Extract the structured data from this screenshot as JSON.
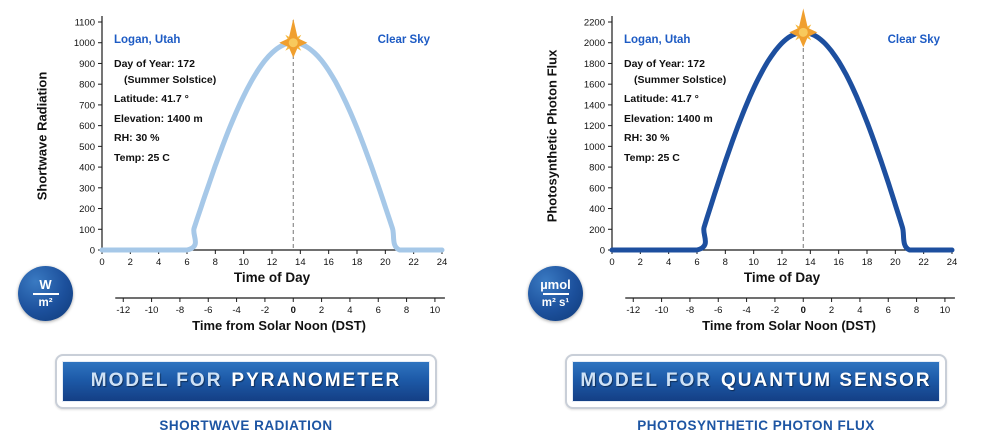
{
  "panels": [
    {
      "y_label": "Shortwave Radiation",
      "location": "Logan, Utah",
      "sky_condition": "Clear Sky",
      "annotations": [
        "Day of Year: 172",
        "(Summer Solstice)",
        "Latitude: 41.7 °",
        "Elevation: 1400 m",
        "RH: 30 %",
        "Temp: 25 C"
      ],
      "badge": {
        "top": "W",
        "bottom": "m²"
      },
      "banner": {
        "prefix": "MODEL FOR",
        "name": "PYRANOMETER"
      },
      "caption": "SHORTWAVE RADIATION"
    },
    {
      "y_label": "Photosynthetic Photon Flux",
      "location": "Logan, Utah",
      "sky_condition": "Clear Sky",
      "annotations": [
        "Day of Year: 172",
        "(Summer Solstice)",
        "Latitude: 41.7 °",
        "Elevation: 1400 m",
        "RH: 30 %",
        "Temp: 25 C"
      ],
      "badge": {
        "top": "µmol",
        "bottom": "m² s¹"
      },
      "banner": {
        "prefix": "MODEL FOR",
        "name": "QUANTUM SENSOR"
      },
      "caption": "PHOTOSYNTHETIC PHOTON FLUX"
    }
  ],
  "chart_data": [
    {
      "type": "line",
      "title": "Modeled clear-sky shortwave radiation, Logan Utah, Day of Year 172 (Summer Solstice), Lat 41.7°, Elev 1400 m, RH 30 %, Temp 25 C",
      "xlabel": "Time of Day",
      "ylabel": "Shortwave Radiation",
      "x_range": [
        0,
        24
      ],
      "x_ticks": [
        0,
        2,
        4,
        6,
        8,
        10,
        12,
        14,
        16,
        18,
        20,
        22,
        24
      ],
      "ylim": [
        0,
        1100
      ],
      "y_ticks": [
        0,
        100,
        200,
        300,
        400,
        500,
        600,
        700,
        800,
        900,
        1000,
        1100
      ],
      "secondary_x": {
        "label": "Time from Solar Noon (DST)",
        "ticks": [
          -12,
          -10,
          -8,
          -6,
          -4,
          -2,
          0,
          2,
          4,
          6,
          8,
          10
        ]
      },
      "solar_noon_x": 13.5,
      "peak_value": 1000,
      "grid": false,
      "legend": "none",
      "series": [
        {
          "name": "Shortwave Radiation (W/m²)",
          "color": "#a6c8e8",
          "x": [
            0,
            6,
            6.5,
            7,
            7.5,
            8,
            8.5,
            9,
            9.5,
            10,
            10.5,
            11,
            11.5,
            12,
            12.5,
            13,
            13.5,
            14,
            14.5,
            15,
            15.5,
            16,
            16.5,
            17,
            17.5,
            18,
            18.5,
            19,
            19.5,
            20,
            20.5,
            21,
            24
          ],
          "y": [
            0,
            0,
            105,
            208,
            309,
            407,
            500,
            588,
            669,
            743,
            809,
            866,
            914,
            951,
            978,
            995,
            1000,
            995,
            978,
            951,
            914,
            866,
            809,
            743,
            669,
            588,
            500,
            407,
            309,
            208,
            105,
            0,
            0
          ]
        }
      ]
    },
    {
      "type": "line",
      "title": "Modeled clear-sky photosynthetic photon flux, Logan Utah, Day of Year 172 (Summer Solstice), Lat 41.7°, Elev 1400 m, RH 30 %, Temp 25 C",
      "xlabel": "Time of Day",
      "ylabel": "Photosynthetic Photon Flux",
      "x_range": [
        0,
        24
      ],
      "x_ticks": [
        0,
        2,
        4,
        6,
        8,
        10,
        12,
        14,
        16,
        18,
        20,
        22,
        24
      ],
      "ylim": [
        0,
        2200
      ],
      "y_ticks": [
        0,
        200,
        400,
        600,
        800,
        1000,
        1200,
        1400,
        1600,
        1800,
        2000,
        2200
      ],
      "secondary_x": {
        "label": "Time from Solar Noon (DST)",
        "ticks": [
          -12,
          -10,
          -8,
          -6,
          -4,
          -2,
          0,
          2,
          4,
          6,
          8,
          10
        ]
      },
      "solar_noon_x": 13.5,
      "peak_value": 2100,
      "grid": false,
      "legend": "none",
      "series": [
        {
          "name": "Photosynthetic Photon Flux (µmol/m² s¹)",
          "color": "#1d4f9f",
          "x": [
            0,
            6,
            6.5,
            7,
            7.5,
            8,
            8.5,
            9,
            9.5,
            10,
            10.5,
            11,
            11.5,
            12,
            12.5,
            13,
            13.5,
            14,
            14.5,
            15,
            15.5,
            16,
            16.5,
            17,
            17.5,
            18,
            18.5,
            19,
            19.5,
            20,
            20.5,
            21,
            24
          ],
          "y": [
            0,
            0,
            220,
            437,
            649,
            854,
            1050,
            1234,
            1405,
            1561,
            1699,
            1819,
            1918,
            1997,
            2054,
            2088,
            2100,
            2088,
            2054,
            1997,
            1918,
            1819,
            1699,
            1561,
            1405,
            1234,
            1050,
            854,
            649,
            437,
            220,
            0,
            0
          ]
        }
      ]
    }
  ]
}
